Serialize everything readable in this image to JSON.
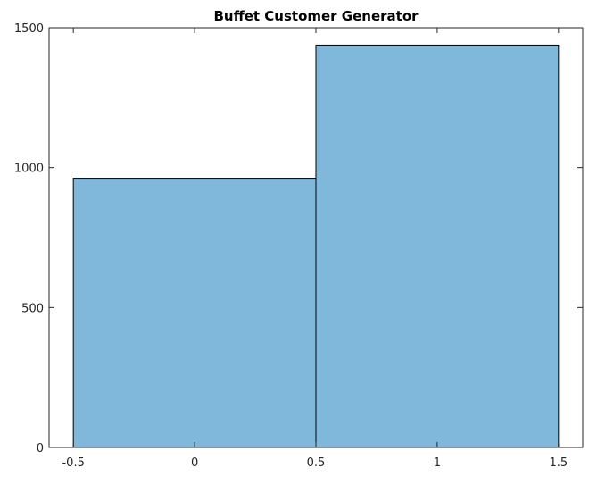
{
  "chart_data": {
    "type": "bar",
    "title": "Buffet Customer Generator",
    "xlabel": "",
    "ylabel": "",
    "xlim": [
      -0.6,
      1.6
    ],
    "ylim": [
      0,
      1500
    ],
    "x_ticks": [
      -0.5,
      0,
      0.5,
      1,
      1.5
    ],
    "x_tick_labels": [
      "-0.5",
      "0",
      "0.5",
      "1",
      "1.5"
    ],
    "y_ticks": [
      0,
      500,
      1000,
      1500
    ],
    "y_tick_labels": [
      "0",
      "500",
      "1000",
      "1500"
    ],
    "bins": [
      {
        "left": -0.5,
        "right": 0.5,
        "value": 962
      },
      {
        "left": 0.5,
        "right": 1.5,
        "value": 1438
      }
    ],
    "grid": false,
    "colors": {
      "bar_fill": "#80b8dc",
      "bar_edge": "#000000",
      "axis": "#262626"
    }
  }
}
